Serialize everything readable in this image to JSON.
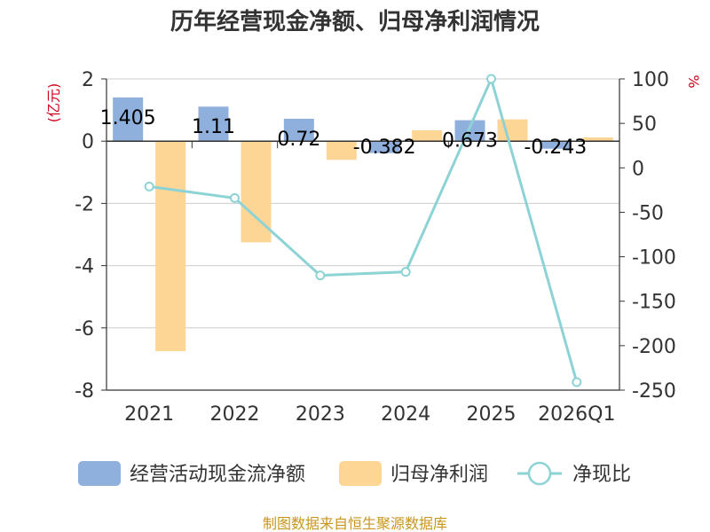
{
  "chart_data": {
    "type": "bar",
    "title": "历年经营现金净额、归母净利润情况",
    "categories": [
      "2021",
      "2022",
      "2023",
      "2024",
      "2025",
      "2026Q1"
    ],
    "left_unit": "(亿元)",
    "right_unit": "%",
    "left_axis": {
      "ylim": [
        -8,
        2
      ],
      "ticks": [
        2,
        0,
        -2,
        -4,
        -6,
        -8
      ]
    },
    "right_axis": {
      "ylim": [
        -250,
        100
      ],
      "ticks": [
        100,
        50,
        0,
        -50,
        -100,
        -150,
        -200,
        -250
      ]
    },
    "series": [
      {
        "name": "经营活动现金流净额",
        "type": "bar",
        "axis": "left",
        "color": "#8fb0dc",
        "values": [
          1.405,
          1.11,
          0.72,
          -0.382,
          0.673,
          -0.243
        ],
        "labels": [
          "1.405",
          "1.11",
          "0.72",
          "-0.382",
          "0.673",
          "-0.243"
        ]
      },
      {
        "name": "归母净利润",
        "type": "bar",
        "axis": "left",
        "color": "#fdd696",
        "values": [
          -6.75,
          -3.25,
          -0.6,
          0.35,
          0.7,
          0.12
        ]
      },
      {
        "name": "净现比",
        "type": "line",
        "axis": "right",
        "color": "#8dd3d6",
        "values": [
          -21,
          -34,
          -121,
          -117,
          100,
          -241
        ]
      }
    ],
    "source": "制图数据来自恒生聚源数据库"
  }
}
